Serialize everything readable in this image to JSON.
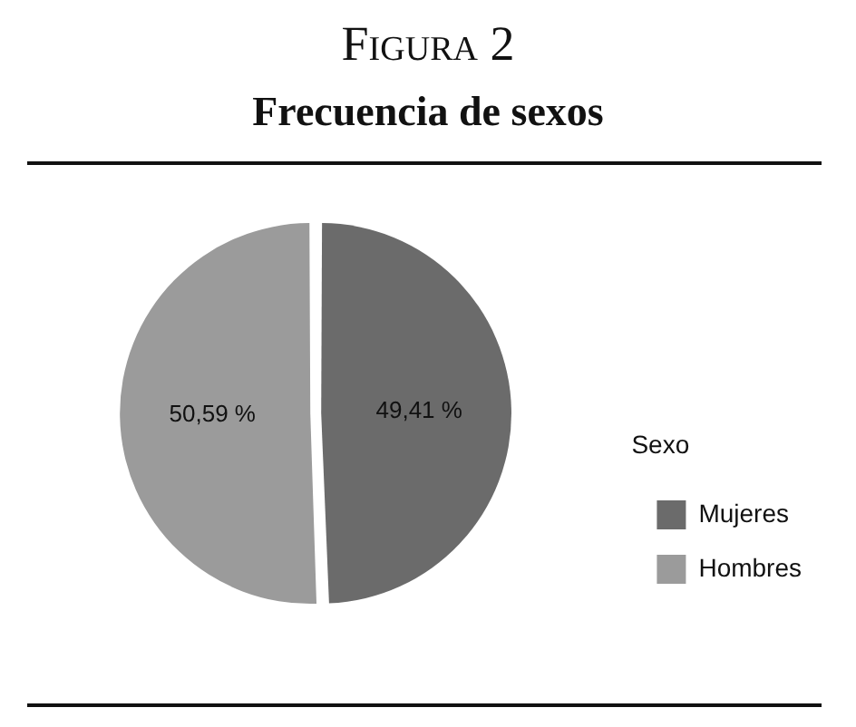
{
  "chart_data": {
    "type": "pie",
    "title": "Figura 2",
    "subtitle": "Frecuencia de sexos",
    "legend_title": "Sexo",
    "categories": [
      "Mujeres",
      "Hombres"
    ],
    "values": [
      49.41,
      50.59
    ],
    "colors": [
      "#6b6b6b",
      "#9b9b9b"
    ],
    "value_labels": [
      "49,41 %",
      "50,59 %"
    ],
    "legend": "bottom right"
  }
}
